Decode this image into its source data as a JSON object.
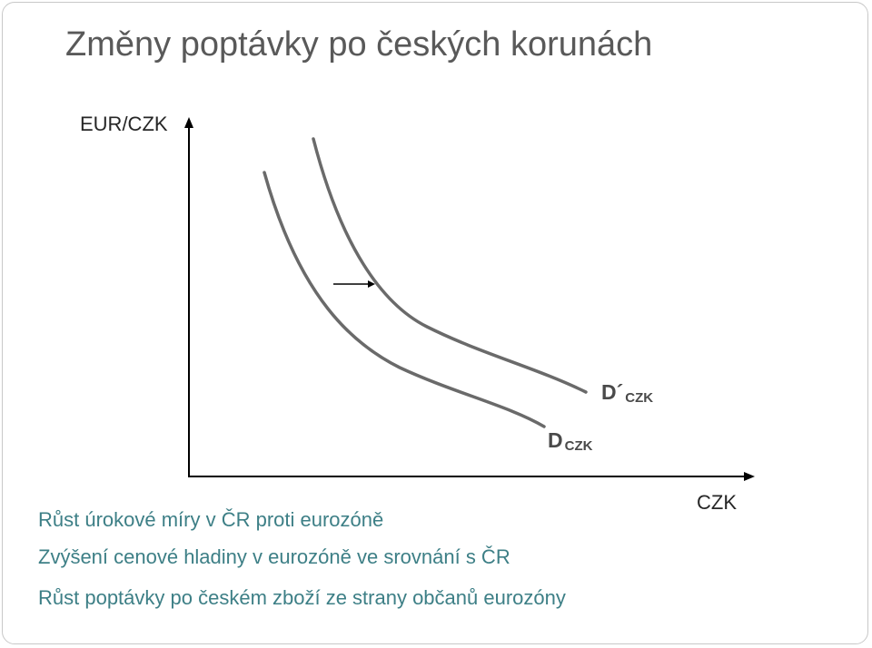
{
  "title": "Změny poptávky po českých korunách",
  "axes": {
    "y_label": "EUR/CZK",
    "x_label": "CZK"
  },
  "curves": {
    "original": {
      "label_main": "D",
      "label_sub": "CZK"
    },
    "shifted": {
      "label_main": "D´",
      "label_sub": "CZK"
    }
  },
  "bullets": [
    "Růst úrokové míry v ČR proti eurozóně",
    "Zvýšení cenové hladiny v eurozóně ve srovnání s ČR",
    "Růst poptávky po českém zboží ze strany občanů eurozóny"
  ],
  "colors": {
    "title": "#595959",
    "curve": "#5f5f5f",
    "bullet_text": "#3d7f86"
  },
  "shift_direction": "right"
}
